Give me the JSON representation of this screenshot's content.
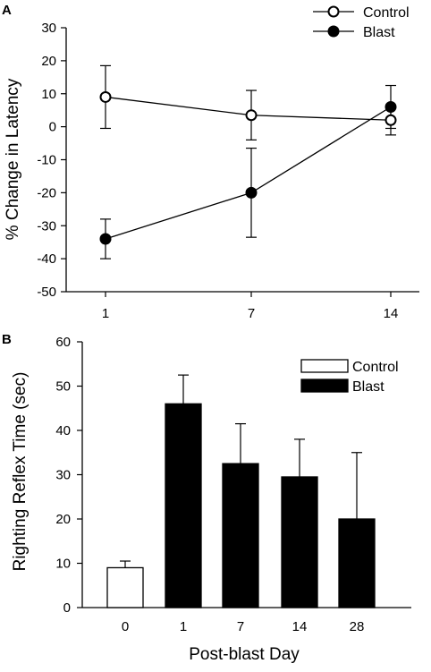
{
  "chart_data": [
    {
      "type": "line",
      "panel_label": "A",
      "x": [
        "1",
        "7",
        "14"
      ],
      "ylabel": "% Change in Latency",
      "ylim": [
        -50,
        30
      ],
      "yticks": [
        "30",
        "20",
        "10",
        "0",
        "-10",
        "-20",
        "-30",
        "-40",
        "-50"
      ],
      "grid": false,
      "legend_position": "top-right",
      "series": [
        {
          "name": "Control",
          "marker": "open-circle",
          "values": [
            9,
            3.5,
            2
          ],
          "error": [
            9.5,
            7.5,
            4.5
          ],
          "color": "#000000"
        },
        {
          "name": "Blast",
          "marker": "filled-circle",
          "values": [
            -34,
            -20,
            6
          ],
          "error": [
            6,
            13.5,
            6.5
          ],
          "color": "#000000"
        }
      ]
    },
    {
      "type": "bar",
      "panel_label": "B",
      "categories": [
        "0",
        "1",
        "7",
        "14",
        "28"
      ],
      "xlabel": "Post-blast Day",
      "ylabel": "Righting Reflex Time (sec)",
      "ylim": [
        0,
        60
      ],
      "yticks": [
        "60",
        "50",
        "40",
        "30",
        "20",
        "10",
        "0"
      ],
      "grid": false,
      "legend_position": "top-right",
      "legend": [
        {
          "name": "Control",
          "fill": "#ffffff"
        },
        {
          "name": "Blast",
          "fill": "#000000"
        }
      ],
      "values": [
        9,
        46,
        32.5,
        29.5,
        20
      ],
      "error": [
        1.5,
        6.5,
        9,
        8.5,
        15
      ],
      "bar_series": [
        "Control",
        "Blast",
        "Blast",
        "Blast",
        "Blast"
      ]
    }
  ]
}
